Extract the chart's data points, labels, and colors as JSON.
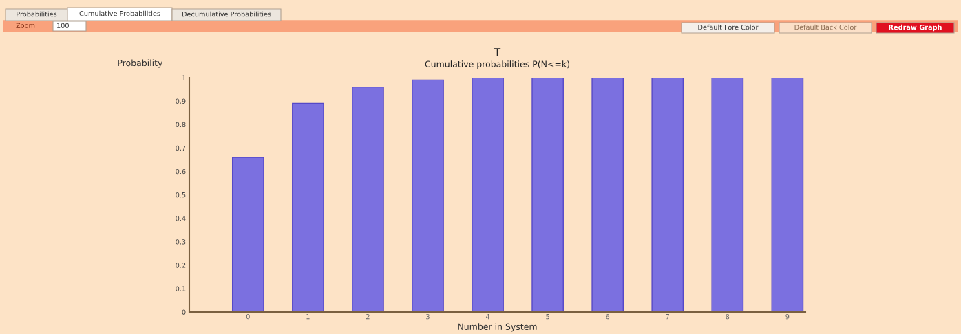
{
  "chart_data": [
    {
      "type": "other",
      "annotations": [
        "Probabilities",
        "Cumulative Probabilities",
        "Decumulative Probabilities",
        "Zoom",
        "100",
        "Default Fore Color",
        "Default Back Color",
        "Redraw Graph"
      ]
    },
    {
      "type": "bar",
      "title": "T",
      "subtitle": "Cumulative probabilities P(N<=k)",
      "xlabel": "Number in System",
      "ylabel": "Probability",
      "categories": [
        "0",
        "1",
        "2",
        "3",
        "4",
        "5",
        "6",
        "7",
        "8",
        "9"
      ],
      "values": [
        0.66,
        0.89,
        0.96,
        0.99,
        1,
        1,
        1,
        1,
        1,
        1
      ],
      "color": "#7b70e0",
      "ylim": [
        0,
        1
      ],
      "yticks": [
        0,
        0.1,
        0.2,
        0.3,
        0.4,
        0.5,
        0.6,
        0.7,
        0.8,
        0.9,
        1
      ],
      "grid": false,
      "legend": false
    }
  ]
}
